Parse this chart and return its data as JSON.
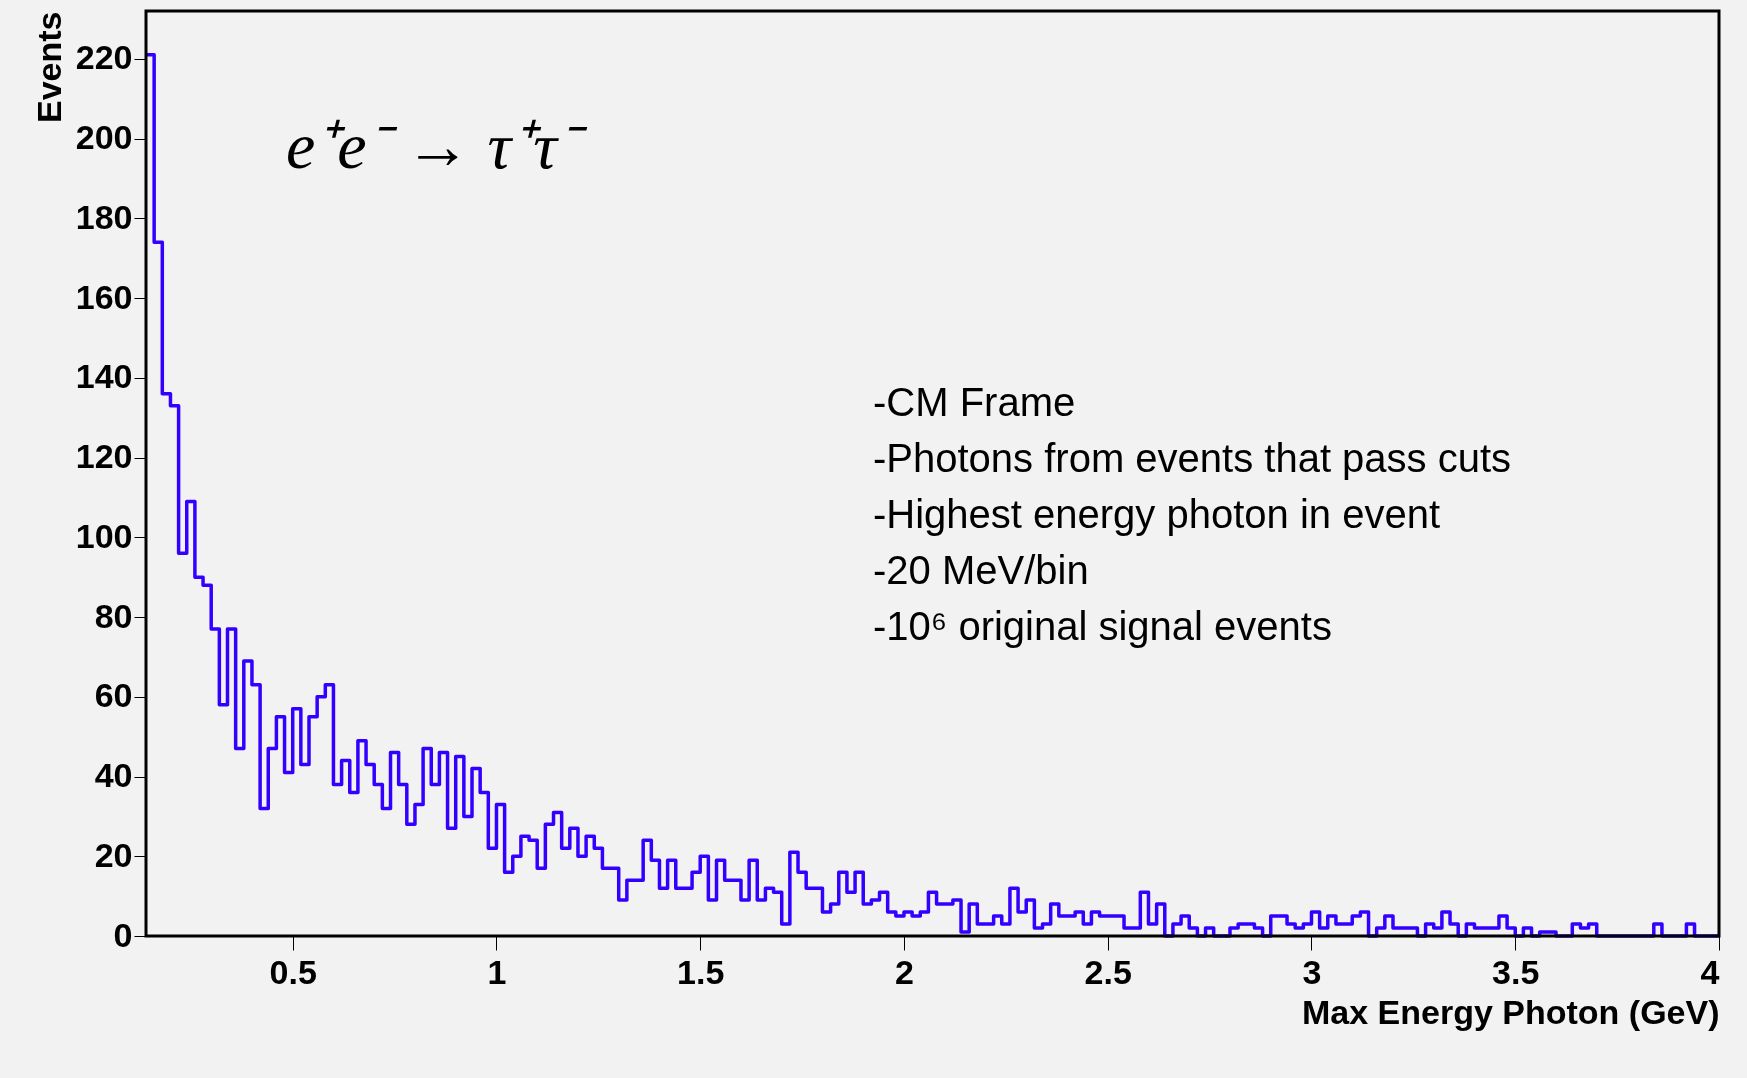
{
  "chart_data": {
    "type": "histogram",
    "xlabel": "Max Energy Photon (GeV)",
    "ylabel": "Events",
    "bins": [
      0.14,
      0.16,
      0.18,
      0.2,
      0.22,
      0.24,
      0.26,
      0.28,
      0.3,
      0.32,
      0.34,
      0.36,
      0.38,
      0.4,
      0.42,
      0.44,
      0.46,
      0.48,
      0.5,
      0.52,
      0.54,
      0.56,
      0.58,
      0.6,
      0.62,
      0.64,
      0.66,
      0.68,
      0.7,
      0.72,
      0.74,
      0.76,
      0.78,
      0.8,
      0.82,
      0.84,
      0.86,
      0.88,
      0.9,
      0.92,
      0.94,
      0.96,
      0.98,
      1.0,
      1.02,
      1.04,
      1.06,
      1.08,
      1.1,
      1.12,
      1.14,
      1.16,
      1.18,
      1.2,
      1.22,
      1.24,
      1.26,
      1.28,
      1.3,
      1.32,
      1.34,
      1.36,
      1.38,
      1.4,
      1.42,
      1.44,
      1.46,
      1.48,
      1.5,
      1.52,
      1.54,
      1.56,
      1.58,
      1.6,
      1.62,
      1.64,
      1.66,
      1.68,
      1.7,
      1.72,
      1.74,
      1.76,
      1.78,
      1.8,
      1.82,
      1.84,
      1.86,
      1.88,
      1.9,
      1.92,
      1.94,
      1.96,
      1.98,
      2.0,
      2.02,
      2.04,
      2.06,
      2.08,
      2.1,
      2.12,
      2.14,
      2.16,
      2.18,
      2.2,
      2.22,
      2.24,
      2.26,
      2.28,
      2.3,
      2.32,
      2.34,
      2.36,
      2.38,
      2.4,
      2.42,
      2.44,
      2.46,
      2.48,
      2.5,
      2.52,
      2.54,
      2.56,
      2.58,
      2.6,
      2.62,
      2.64,
      2.66,
      2.68,
      2.7,
      2.72,
      2.74,
      2.76,
      2.78,
      2.8,
      2.82,
      2.84,
      2.86,
      2.88,
      2.9,
      2.92,
      2.94,
      2.96,
      2.98,
      3.0,
      3.02,
      3.04,
      3.06,
      3.08,
      3.1,
      3.12,
      3.14,
      3.16,
      3.18,
      3.2,
      3.22,
      3.24,
      3.26,
      3.28,
      3.3,
      3.32,
      3.34,
      3.36,
      3.38,
      3.4,
      3.42,
      3.44,
      3.46,
      3.48,
      3.5,
      3.52,
      3.54,
      3.56,
      3.58,
      3.6,
      3.62,
      3.64,
      3.66,
      3.68,
      3.7,
      3.72,
      3.74,
      3.76,
      3.78,
      3.8,
      3.82,
      3.84,
      3.86,
      3.88,
      3.9,
      3.92,
      3.94,
      3.96,
      3.98,
      4.0
    ],
    "values": [
      221,
      174,
      136,
      133,
      96,
      109,
      90,
      88,
      77,
      58,
      77,
      47,
      69,
      63,
      32,
      47,
      55,
      41,
      57,
      43,
      55,
      60,
      63,
      38,
      44,
      36,
      49,
      43,
      38,
      32,
      46,
      38,
      28,
      33,
      47,
      38,
      46,
      27,
      45,
      30,
      42,
      36,
      22,
      33,
      16,
      20,
      25,
      24,
      17,
      28,
      31,
      22,
      27,
      20,
      25,
      22,
      17,
      17,
      9,
      14,
      14,
      24,
      19,
      12,
      19,
      12,
      12,
      16,
      20,
      9,
      19,
      14,
      14,
      9,
      19,
      9,
      12,
      11,
      3,
      21,
      16,
      12,
      12,
      6,
      8,
      16,
      11,
      16,
      8,
      9,
      11,
      6,
      5,
      6,
      5,
      6,
      11,
      8,
      8,
      9,
      1,
      8,
      3,
      3,
      5,
      3,
      12,
      6,
      9,
      2,
      3,
      8,
      5,
      5,
      6,
      3,
      6,
      5,
      5,
      5,
      2,
      2,
      11,
      3,
      8,
      0,
      3,
      5,
      2,
      0,
      2,
      0,
      0,
      2,
      3,
      3,
      2,
      0,
      5,
      5,
      3,
      2,
      3,
      6,
      2,
      5,
      3,
      3,
      5,
      6,
      0,
      2,
      5,
      2,
      2,
      2,
      0,
      3,
      2,
      6,
      3,
      0,
      3,
      2,
      2,
      2,
      5,
      2,
      0,
      2,
      0,
      1,
      1,
      0,
      0,
      3,
      2,
      3,
      0,
      0,
      0,
      0,
      0,
      0,
      0,
      3,
      0,
      0,
      0,
      3,
      0,
      0,
      0
    ],
    "color": "#3300ff",
    "xlim": [
      0.14,
      4
    ],
    "ylim": [
      0,
      232
    ],
    "xticks": [
      0.5,
      1,
      1.5,
      2,
      2.5,
      3,
      3.5,
      4
    ],
    "yticks": [
      0,
      20,
      40,
      60,
      80,
      100,
      120,
      140,
      160,
      180,
      200,
      220
    ],
    "grid": false,
    "annotations": [
      "e⁺e⁻ → τ⁺τ⁻",
      "-CM Frame",
      "-Photons from events that pass cuts",
      "-Highest energy photon in event",
      "-20 MeV/bin",
      "-10⁶ original signal events"
    ]
  }
}
